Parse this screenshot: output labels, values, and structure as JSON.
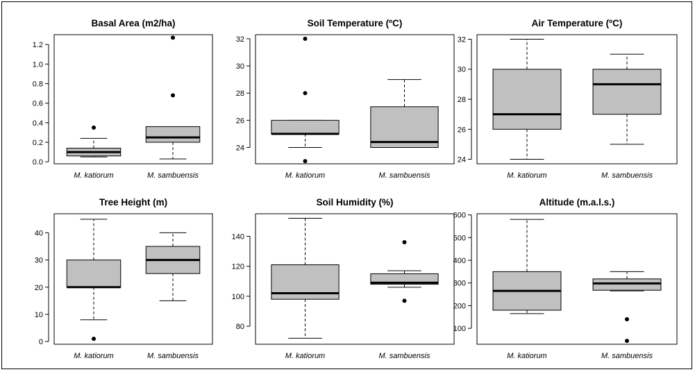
{
  "chart_data": [
    {
      "type": "boxplot",
      "title": "Basal Area (m2/ha)",
      "categories": [
        "M. katiorum",
        "M. sambuensis"
      ],
      "ylim": [
        -0.02,
        1.3
      ],
      "yticks": [
        0.0,
        0.2,
        0.4,
        0.6,
        0.8,
        1.0,
        1.2
      ],
      "ytick_labels": [
        "0.0",
        "0.2",
        "0.4",
        "0.6",
        "0.8",
        "1.0",
        "1.2"
      ],
      "boxes": [
        {
          "whisker_low": 0.05,
          "q1": 0.06,
          "median": 0.1,
          "q3": 0.14,
          "whisker_high": 0.24,
          "outliers": [
            0.35
          ]
        },
        {
          "whisker_low": 0.03,
          "q1": 0.2,
          "median": 0.25,
          "q3": 0.36,
          "whisker_high": 0.36,
          "outliers": [
            0.68,
            1.27
          ]
        }
      ]
    },
    {
      "type": "boxplot",
      "title": "Soil Temperature (ºC)",
      "categories": [
        "M. katiorum",
        "M. sambuensis"
      ],
      "ylim": [
        22.8,
        32.3
      ],
      "yticks": [
        24,
        26,
        28,
        30,
        32
      ],
      "ytick_labels": [
        "24",
        "26",
        "28",
        "30",
        "32"
      ],
      "boxes": [
        {
          "whisker_low": 24,
          "q1": 25,
          "median": 25,
          "q3": 26,
          "whisker_high": 26,
          "outliers": [
            23,
            28,
            32
          ]
        },
        {
          "whisker_low": 24,
          "q1": 24,
          "median": 24.4,
          "q3": 27,
          "whisker_high": 29,
          "outliers": []
        }
      ]
    },
    {
      "type": "boxplot",
      "title": "Air Temperature (ºC)",
      "categories": [
        "M. katiorum",
        "M. sambuensis"
      ],
      "ylim": [
        23.7,
        32.3
      ],
      "yticks": [
        24,
        26,
        28,
        30,
        32
      ],
      "ytick_labels": [
        "24",
        "26",
        "28",
        "30",
        "32"
      ],
      "boxes": [
        {
          "whisker_low": 24,
          "q1": 26,
          "median": 27,
          "q3": 30,
          "whisker_high": 32,
          "outliers": []
        },
        {
          "whisker_low": 25,
          "q1": 27,
          "median": 29,
          "q3": 30,
          "whisker_high": 31,
          "outliers": []
        }
      ]
    },
    {
      "type": "boxplot",
      "title": "Tree Height (m)",
      "categories": [
        "M. katiorum",
        "M. sambuensis"
      ],
      "ylim": [
        -1,
        47
      ],
      "yticks": [
        0,
        10,
        20,
        30,
        40
      ],
      "ytick_labels": [
        "0",
        "10",
        "20",
        "30",
        "40"
      ],
      "boxes": [
        {
          "whisker_low": 8,
          "q1": 20,
          "median": 20,
          "q3": 30,
          "whisker_high": 45,
          "outliers": [
            1
          ]
        },
        {
          "whisker_low": 15,
          "q1": 25,
          "median": 30,
          "q3": 35,
          "whisker_high": 40,
          "outliers": []
        }
      ]
    },
    {
      "type": "boxplot",
      "title": "Soil Humidity (%)",
      "categories": [
        "M. katiorum",
        "M. sambuensis"
      ],
      "ylim": [
        68,
        155
      ],
      "yticks": [
        80,
        100,
        120,
        140
      ],
      "ytick_labels": [
        "80",
        "100",
        "120",
        "140"
      ],
      "boxes": [
        {
          "whisker_low": 72,
          "q1": 98,
          "median": 102,
          "q3": 121,
          "whisker_high": 152,
          "outliers": []
        },
        {
          "whisker_low": 106,
          "q1": 108,
          "median": 109,
          "q3": 115,
          "whisker_high": 117,
          "outliers": [
            97,
            136
          ]
        }
      ]
    },
    {
      "type": "boxplot",
      "title": "Altitude (m.a.l.s.)",
      "categories": [
        "M. katiorum",
        "M. sambuensis"
      ],
      "ylim": [
        30,
        605
      ],
      "yticks": [
        100,
        200,
        300,
        400,
        500,
        600
      ],
      "ytick_labels": [
        "100",
        "200",
        "300",
        "400",
        "500",
        "600"
      ],
      "boxes": [
        {
          "whisker_low": 165,
          "q1": 180,
          "median": 265,
          "q3": 350,
          "whisker_high": 580,
          "outliers": []
        },
        {
          "whisker_low": 265,
          "q1": 268,
          "median": 298,
          "q3": 318,
          "whisker_high": 350,
          "outliers": [
            45,
            140
          ]
        }
      ]
    }
  ]
}
